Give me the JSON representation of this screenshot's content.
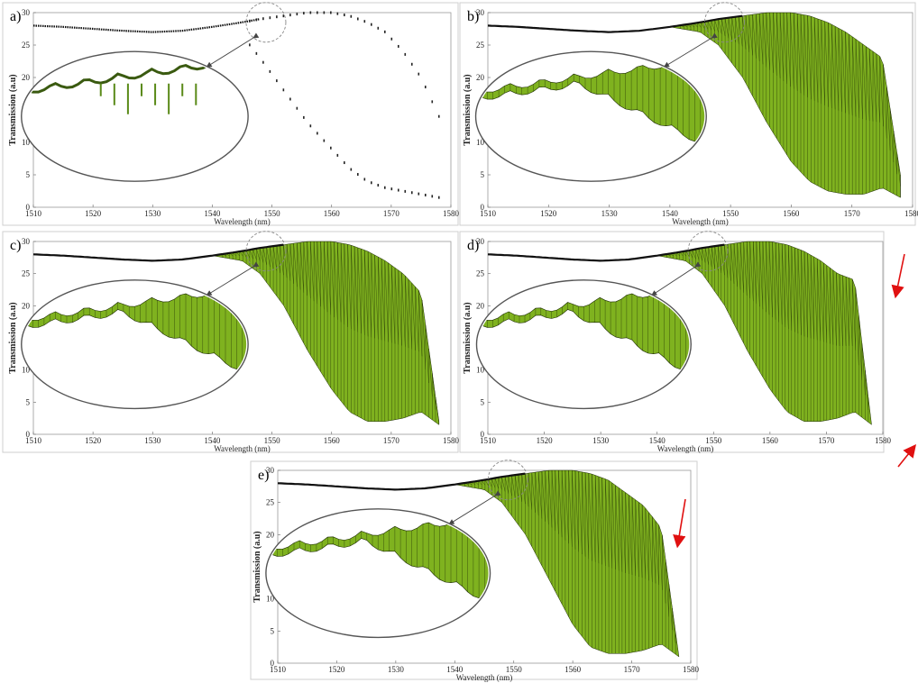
{
  "chart_data": [
    {
      "panel": "a)",
      "type": "scatter",
      "xlabel": "Wavelength (nm)",
      "ylabel": "Transmission (a.u)",
      "xlim": [
        1510,
        1580
      ],
      "ylim": [
        0,
        30
      ],
      "xticks": [
        1510,
        1520,
        1530,
        1540,
        1550,
        1560,
        1570,
        1580
      ],
      "yticks": [
        0,
        5,
        10,
        15,
        20,
        25,
        30
      ],
      "x": [
        1510,
        1515,
        1520,
        1525,
        1530,
        1535,
        1540,
        1545,
        1548,
        1552,
        1556,
        1560,
        1563,
        1566,
        1569,
        1572,
        1575,
        1578
      ],
      "y": [
        28,
        27.8,
        27.5,
        27.2,
        27.0,
        27.2,
        27.8,
        28.5,
        29.0,
        29.5,
        30.0,
        30.0,
        29.5,
        28.5,
        27.0,
        24.0,
        20.0,
        14.0
      ],
      "y_lower": [
        28,
        27.8,
        27.5,
        27.2,
        27.0,
        27.2,
        27.8,
        26.5,
        23.0,
        18.0,
        13.0,
        9.0,
        6.0,
        4.0,
        3.0,
        2.5,
        2.0,
        1.5
      ],
      "style": "sparse-dots",
      "inset": true,
      "legend": "none",
      "grid": false
    },
    {
      "panel": "b)",
      "type": "area",
      "xlabel": "Wavelength (nm)",
      "ylabel": "Transmission (a.u)",
      "xlim": [
        1510,
        1580
      ],
      "ylim": [
        0,
        30
      ],
      "xticks": [
        1510,
        1520,
        1530,
        1540,
        1550,
        1560,
        1570,
        1580
      ],
      "yticks": [
        0,
        5,
        10,
        15,
        20,
        25,
        30
      ],
      "x": [
        1510,
        1515,
        1520,
        1525,
        1530,
        1535,
        1540,
        1545,
        1548,
        1552,
        1556,
        1560,
        1563,
        1566,
        1569,
        1572,
        1575,
        1578
      ],
      "y": [
        28,
        27.8,
        27.5,
        27.2,
        27.0,
        27.2,
        27.8,
        28.5,
        29.0,
        29.5,
        30.0,
        30.0,
        29.5,
        28.5,
        27.0,
        25.0,
        23.0,
        5.0
      ],
      "y_lower": [
        28,
        27.8,
        27.5,
        27.2,
        27.0,
        27.2,
        27.8,
        27.0,
        25.0,
        20.0,
        13.0,
        7.0,
        4.0,
        2.5,
        2.0,
        2.0,
        3.0,
        1.5
      ],
      "color": "#7fb21f",
      "inset": true,
      "legend": "none",
      "grid": false
    },
    {
      "panel": "c)",
      "type": "area",
      "xlabel": "Wavelength (nm)",
      "ylabel": "Transmission (a.u)",
      "xlim": [
        1510,
        1580
      ],
      "ylim": [
        0,
        30
      ],
      "xticks": [
        1510,
        1520,
        1530,
        1540,
        1550,
        1560,
        1570,
        1580
      ],
      "yticks": [
        0,
        5,
        10,
        15,
        20,
        25,
        30
      ],
      "x": [
        1510,
        1515,
        1520,
        1525,
        1530,
        1535,
        1540,
        1545,
        1548,
        1552,
        1556,
        1560,
        1563,
        1566,
        1569,
        1572,
        1575,
        1578
      ],
      "y": [
        28,
        27.8,
        27.5,
        27.2,
        27.0,
        27.2,
        27.8,
        28.5,
        29.0,
        29.5,
        30.0,
        30.0,
        29.5,
        28.5,
        27.0,
        25.0,
        22.0,
        2.0
      ],
      "y_lower": [
        28,
        27.8,
        27.5,
        27.2,
        27.0,
        27.2,
        27.8,
        27.0,
        25.0,
        20.0,
        13.0,
        7.0,
        3.5,
        2.0,
        2.0,
        2.5,
        3.5,
        1.5
      ],
      "color": "#7fb21f",
      "inset": true,
      "legend": "none",
      "grid": false
    },
    {
      "panel": "d)",
      "type": "area",
      "xlabel": "Wavelength (nm)",
      "ylabel": "Transmission (a.u)",
      "xlim": [
        1510,
        1580
      ],
      "ylim": [
        0,
        30
      ],
      "xticks": [
        1510,
        1520,
        1530,
        1540,
        1550,
        1560,
        1570,
        1580
      ],
      "yticks": [
        0,
        5,
        10,
        15,
        20,
        25,
        30
      ],
      "x": [
        1510,
        1515,
        1520,
        1525,
        1530,
        1535,
        1540,
        1545,
        1548,
        1552,
        1556,
        1560,
        1563,
        1566,
        1569,
        1572,
        1575,
        1578
      ],
      "y": [
        28,
        27.8,
        27.5,
        27.2,
        27.0,
        27.2,
        27.8,
        28.5,
        29.0,
        29.5,
        30.0,
        30.0,
        29.5,
        28.5,
        27.0,
        25.0,
        24.0,
        1.5
      ],
      "y_lower": [
        28,
        27.8,
        27.5,
        27.2,
        27.0,
        27.2,
        27.8,
        27.0,
        25.0,
        20.0,
        13.0,
        7.0,
        3.5,
        2.0,
        2.0,
        2.5,
        3.5,
        1.5
      ],
      "color": "#7fb21f",
      "inset": true,
      "annotations": [
        "red arrow near x=1578, y=22",
        "red arrow near x=1580, y=-3"
      ],
      "legend": "none",
      "grid": false
    },
    {
      "panel": "e)",
      "type": "area",
      "xlabel": "Wavelength (nm)",
      "ylabel": "Transmission (a.u)",
      "xlim": [
        1510,
        1580
      ],
      "ylim": [
        0,
        30
      ],
      "xticks": [
        1510,
        1520,
        1530,
        1540,
        1550,
        1560,
        1570,
        1580
      ],
      "yticks": [
        0,
        5,
        10,
        15,
        20,
        25,
        30
      ],
      "x": [
        1510,
        1515,
        1520,
        1525,
        1530,
        1535,
        1540,
        1545,
        1548,
        1552,
        1556,
        1560,
        1563,
        1566,
        1569,
        1572,
        1575,
        1578
      ],
      "y": [
        28,
        27.8,
        27.5,
        27.2,
        27.0,
        27.2,
        27.8,
        28.5,
        29.0,
        29.5,
        30.0,
        30.0,
        29.5,
        28.5,
        26.5,
        24.5,
        21.0,
        1.0
      ],
      "y_lower": [
        28,
        27.8,
        27.5,
        27.2,
        27.0,
        27.2,
        27.8,
        27.0,
        25.0,
        20.0,
        13.0,
        6.0,
        2.5,
        1.5,
        1.5,
        2.0,
        3.0,
        1.0
      ],
      "color": "#7fb21f",
      "inset": true,
      "annotations": [
        "red arrow near x=1576, y=22"
      ],
      "legend": "none",
      "grid": false
    }
  ]
}
